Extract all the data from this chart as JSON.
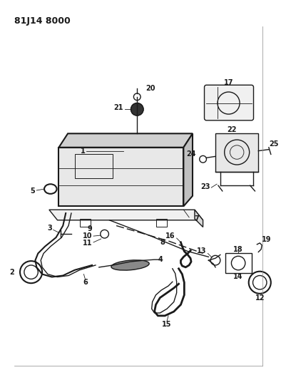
{
  "title": "81J14 8000",
  "bg_color": "#ffffff",
  "line_color": "#1a1a1a",
  "title_fontsize": 9,
  "fig_width": 3.94,
  "fig_height": 5.33,
  "dpi": 100
}
